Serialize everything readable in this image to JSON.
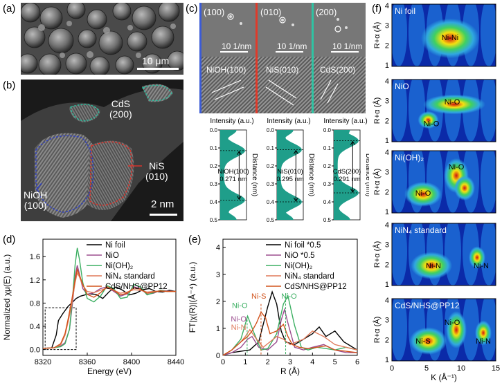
{
  "panels": {
    "a": {
      "label": "(a)",
      "scalebar": "10 μm"
    },
    "b": {
      "label": "(b)",
      "scalebar": "2 nm",
      "annotations": [
        {
          "text": "CdS",
          "text2": "(200)",
          "color": "#2fb79a"
        },
        {
          "text": "NiS",
          "text2": "(010)",
          "color": "#d9332b"
        },
        {
          "text": "NiOH",
          "text2": "(100)",
          "color": "#2f3fbf"
        }
      ]
    },
    "c": {
      "label": "(c)",
      "fft": [
        {
          "plane": "(100)",
          "scale": "10 1/nm",
          "lattice": "NiOH(100)",
          "bar": "#3b5bd6"
        },
        {
          "plane": "(010)",
          "scale": "10 1/nm",
          "lattice": "NiS(010)",
          "bar": "#e03a2a"
        },
        {
          "plane": "(200)",
          "scale": "10 1/nm",
          "lattice": "CdS(200)",
          "bar": "#2fc3a3"
        }
      ],
      "profiles": [
        {
          "name": "NiOH(100)",
          "d": "0.271 nm",
          "top": 0.115,
          "bottom": 0.39
        },
        {
          "name": "NiS(010)",
          "d": "0.295 nm",
          "top": 0.11,
          "bottom": 0.4
        },
        {
          "name": "CdS(200)",
          "d": "0.291 nm",
          "top": 0.06,
          "bottom": 0.35
        }
      ],
      "profile_xlabel": "Intensity (a.u.)",
      "profile_ylabel": "Distance (nm)",
      "profile_ticks": [
        "0.0",
        "0.1",
        "0.2",
        "0.3",
        "0.4",
        "0.5"
      ],
      "profile_fill": "#1f9e8a"
    },
    "d": {
      "label": "(d)"
    },
    "e": {
      "label": "(e)"
    },
    "f": {
      "label": "(f)",
      "maps": [
        {
          "title": "Ni foil",
          "labels": [
            "Ni-Ni"
          ]
        },
        {
          "title": "NiO",
          "labels": [
            "Ni-O",
            "Ni-O"
          ]
        },
        {
          "title": "Ni(OH)₂",
          "labels": [
            "Ni-O",
            "Ni-O"
          ]
        },
        {
          "title": "NiN₄ standard",
          "labels": [
            "Ni-N",
            "Ni-N"
          ]
        },
        {
          "title": "CdS/NHS@PP12",
          "labels": [
            "Ni-S",
            "Ni-O",
            "Ni-N"
          ]
        }
      ],
      "ylabel": "R+α (Å)",
      "xlabel": "K (Å⁻¹)",
      "yticks": [
        "1",
        "2",
        "3",
        "4"
      ],
      "xticks": [
        "0",
        "5",
        "10",
        "15"
      ]
    }
  },
  "chart_data": [
    {
      "type": "line",
      "panel": "d",
      "xlabel": "Energy (eV)",
      "ylabel": "Normalized χμ(E) (a.u.)",
      "xlim": [
        8320,
        8440
      ],
      "ylim": [
        -0.1,
        1.9
      ],
      "xticks": [
        "8320",
        "8360",
        "8400",
        "8440"
      ],
      "yticks": [
        "0.0",
        "0.4",
        "0.8",
        "1.2",
        "1.6"
      ],
      "series": [
        {
          "name": "Ni foil",
          "color": "#000000",
          "x": [
            8320,
            8328,
            8332,
            8334,
            8338,
            8343,
            8346,
            8350,
            8354,
            8358,
            8362,
            8368,
            8374,
            8380,
            8386,
            8392,
            8398,
            8404,
            8410,
            8416,
            8422,
            8428,
            8434,
            8440
          ],
          "y": [
            0.02,
            0.03,
            0.25,
            0.5,
            0.62,
            0.75,
            0.8,
            0.88,
            0.92,
            0.94,
            0.96,
            0.95,
            0.88,
            1.0,
            1.08,
            1.02,
            0.94,
            0.97,
            1.03,
            1.05,
            1.0,
            0.99,
            1.02,
            1.0
          ]
        },
        {
          "name": "NiO",
          "color": "#9b4d8e",
          "x": [
            8320,
            8330,
            8336,
            8340,
            8344,
            8347,
            8349,
            8351,
            8353,
            8356,
            8360,
            8366,
            8372,
            8378,
            8384,
            8390,
            8396,
            8402,
            8408,
            8414,
            8420,
            8426,
            8432,
            8440
          ],
          "y": [
            0.02,
            0.03,
            0.06,
            0.12,
            0.35,
            0.85,
            1.25,
            1.45,
            1.3,
            1.05,
            0.95,
            0.98,
            1.05,
            1.08,
            1.0,
            0.92,
            0.96,
            1.08,
            1.05,
            0.95,
            0.97,
            1.02,
            1.01,
            1.0
          ]
        },
        {
          "name": "Ni(OH)₂",
          "color": "#3caf62",
          "x": [
            8320,
            8330,
            8336,
            8340,
            8344,
            8347,
            8349,
            8351,
            8353,
            8356,
            8360,
            8366,
            8372,
            8378,
            8384,
            8390,
            8396,
            8402,
            8408,
            8414,
            8420,
            8426,
            8432,
            8440
          ],
          "y": [
            0.02,
            0.03,
            0.05,
            0.1,
            0.35,
            0.95,
            1.45,
            1.75,
            1.55,
            1.15,
            0.88,
            0.82,
            0.92,
            1.1,
            1.05,
            0.88,
            0.9,
            1.12,
            1.08,
            0.94,
            0.98,
            1.02,
            1.0,
            1.0
          ]
        },
        {
          "name": "NiN₄ standard",
          "color": "#e07a5a",
          "x": [
            8320,
            8330,
            8336,
            8340,
            8343,
            8346,
            8349,
            8351,
            8353,
            8356,
            8360,
            8366,
            8372,
            8378,
            8384,
            8390,
            8396,
            8402,
            8408,
            8414,
            8420,
            8426,
            8432,
            8440
          ],
          "y": [
            0.02,
            0.03,
            0.08,
            0.25,
            0.5,
            0.78,
            1.15,
            1.32,
            1.25,
            1.1,
            1.0,
            0.98,
            1.02,
            1.06,
            1.02,
            0.97,
            0.99,
            1.03,
            1.02,
            0.99,
            1.0,
            1.01,
            1.0,
            1.0
          ]
        },
        {
          "name": "CdS/NHS@PP12",
          "color": "#d2531c",
          "x": [
            8320,
            8330,
            8336,
            8340,
            8343,
            8346,
            8349,
            8351,
            8353,
            8356,
            8360,
            8366,
            8372,
            8378,
            8384,
            8390,
            8396,
            8402,
            8408,
            8414,
            8420,
            8426,
            8432,
            8440
          ],
          "y": [
            0.02,
            0.03,
            0.1,
            0.28,
            0.55,
            0.85,
            1.2,
            1.38,
            1.28,
            1.12,
            0.95,
            0.9,
            0.98,
            1.08,
            1.02,
            0.94,
            0.97,
            1.06,
            1.04,
            0.97,
            0.99,
            1.01,
            1.0,
            1.0
          ]
        }
      ]
    },
    {
      "type": "line",
      "panel": "e",
      "xlabel": "R (Å)",
      "ylabel": "FT|χ(R)|(Å⁻⁴) (a.u.)",
      "xlim": [
        0,
        6
      ],
      "ylim": [
        0,
        4.3
      ],
      "xticks": [
        "0",
        "1",
        "2",
        "3",
        "4",
        "5",
        "6"
      ],
      "yticks": [
        "0",
        "1",
        "2",
        "3",
        "4"
      ],
      "annotations": [
        {
          "text": "Ni-O",
          "color": "#3caf62",
          "x": 0.75,
          "y": 1.75
        },
        {
          "text": "Ni-S",
          "color": "#d2531c",
          "x": 1.6,
          "y": 2.1
        },
        {
          "text": "Ni-O",
          "color": "#9b4d8e",
          "x": 0.7,
          "y": 1.25
        },
        {
          "text": "Ni-N",
          "color": "#e07a5a",
          "x": 0.7,
          "y": 0.95
        },
        {
          "text": "Ni-O",
          "color": "#3caf62",
          "x": 2.95,
          "y": 2.1
        }
      ],
      "series": [
        {
          "name": "Ni foil *0.5",
          "color": "#000000",
          "x": [
            0,
            0.4,
            0.8,
            1.2,
            1.6,
            2.0,
            2.2,
            2.4,
            2.6,
            2.8,
            3.2,
            3.6,
            4.0,
            4.3,
            4.6,
            5.0,
            5.4,
            5.8,
            6.0
          ],
          "y": [
            0,
            0.1,
            0.15,
            0.2,
            0.5,
            1.8,
            2.35,
            1.9,
            0.9,
            0.5,
            0.4,
            0.6,
            0.8,
            1.05,
            0.7,
            0.9,
            0.5,
            0.3,
            0.2
          ]
        },
        {
          "name": "NiO *0.5",
          "color": "#9b4d8e",
          "x": [
            0,
            0.4,
            0.8,
            1.1,
            1.3,
            1.6,
            2.0,
            2.4,
            2.6,
            2.75,
            2.9,
            3.2,
            3.6,
            4.0,
            4.5,
            5.0,
            5.5,
            6.0
          ],
          "y": [
            0,
            0.1,
            0.3,
            0.6,
            0.7,
            0.3,
            0.2,
            0.5,
            1.3,
            1.7,
            1.2,
            0.3,
            0.2,
            0.3,
            0.4,
            0.2,
            0.1,
            0.1
          ]
        },
        {
          "name": "Ni(OH)₂",
          "color": "#3caf62",
          "x": [
            0,
            0.4,
            0.8,
            1.1,
            1.4,
            1.7,
            2.0,
            2.4,
            2.7,
            2.9,
            3.2,
            3.5,
            3.8,
            4.2,
            4.6,
            5.0,
            5.5,
            6.0
          ],
          "y": [
            0,
            0.2,
            0.6,
            1.45,
            0.8,
            0.2,
            0.25,
            0.8,
            1.9,
            2.2,
            1.1,
            0.3,
            0.2,
            0.3,
            0.25,
            0.2,
            0.3,
            0.2
          ]
        },
        {
          "name": "NiN₄ standard",
          "color": "#e07a5a",
          "x": [
            0,
            0.4,
            0.8,
            1.0,
            1.2,
            1.5,
            1.8,
            2.1,
            2.4,
            2.7,
            3.0,
            3.3,
            3.6,
            4.0,
            4.5,
            5.0,
            5.5,
            6.0
          ],
          "y": [
            0,
            0.2,
            0.5,
            0.7,
            0.95,
            0.6,
            0.3,
            0.5,
            0.7,
            0.6,
            0.4,
            0.5,
            0.6,
            0.9,
            0.7,
            0.4,
            0.3,
            0.2
          ]
        },
        {
          "name": "CdS/NHS@PP12",
          "color": "#d2531c",
          "x": [
            0,
            0.4,
            0.8,
            1.1,
            1.3,
            1.5,
            1.7,
            1.9,
            2.1,
            2.4,
            2.7,
            2.9,
            3.1,
            3.4,
            3.8,
            4.2,
            4.6,
            5.0,
            5.5,
            6.0
          ],
          "y": [
            0,
            0.2,
            0.5,
            0.7,
            0.9,
            1.2,
            1.6,
            1.4,
            0.8,
            0.9,
            1.15,
            0.7,
            0.4,
            0.3,
            0.25,
            0.3,
            0.35,
            0.2,
            0.15,
            0.1
          ]
        }
      ]
    }
  ]
}
